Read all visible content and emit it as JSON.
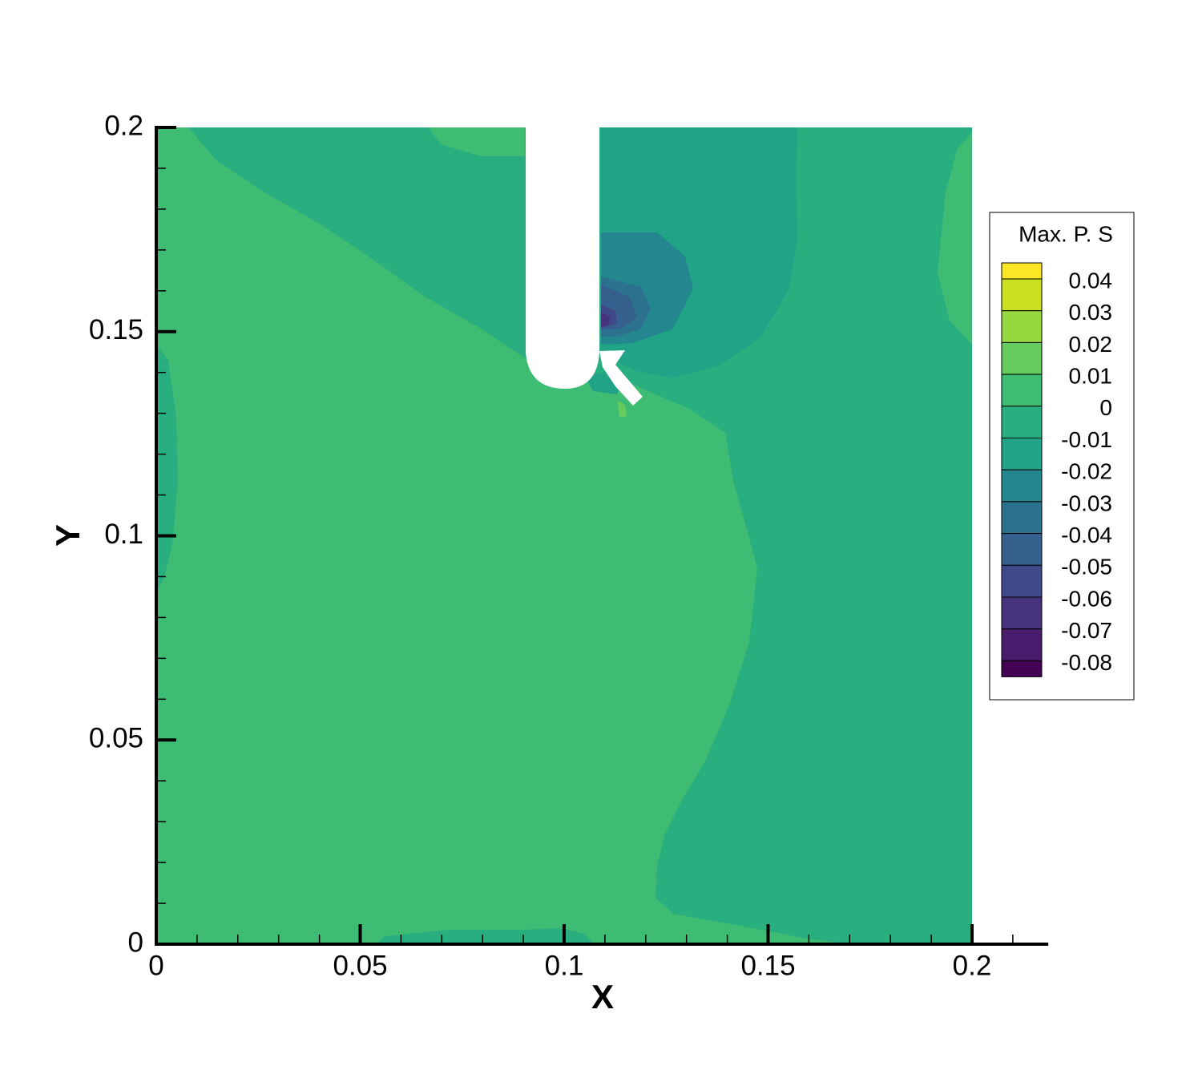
{
  "chart_data": {
    "type": "contour",
    "xlabel": "X",
    "ylabel": "Y",
    "legend_title": "Max. P. S",
    "xlim": [
      0,
      0.2187
    ],
    "ylim": [
      0,
      0.2
    ],
    "xticks": [
      0,
      0.05,
      0.1,
      0.15,
      0.2
    ],
    "yticks": [
      0,
      0.05,
      0.1,
      0.15,
      0.2
    ],
    "xminorticks": [
      0.01,
      0.02,
      0.03,
      0.04,
      0.06,
      0.07,
      0.08,
      0.09,
      0.11,
      0.12,
      0.13,
      0.14,
      0.16,
      0.17,
      0.18,
      0.19,
      0.21
    ],
    "yminorticks": [
      0.01,
      0.02,
      0.03,
      0.04,
      0.06,
      0.07,
      0.08,
      0.09,
      0.11,
      0.12,
      0.13,
      0.14,
      0.16,
      0.17,
      0.18,
      0.19
    ],
    "levels": [
      0.04,
      0.03,
      0.02,
      0.01,
      0,
      -0.01,
      -0.02,
      -0.03,
      -0.04,
      -0.05,
      -0.06,
      -0.07,
      -0.08
    ],
    "colors": [
      "#fde725",
      "#c8e020",
      "#95d840",
      "#65cb5e",
      "#3fbc73",
      "#29af7f",
      "#20a386",
      "#24868e",
      "#2c728e",
      "#355f8d",
      "#3e4989",
      "#46337e",
      "#481b6d",
      "#440154"
    ]
  }
}
